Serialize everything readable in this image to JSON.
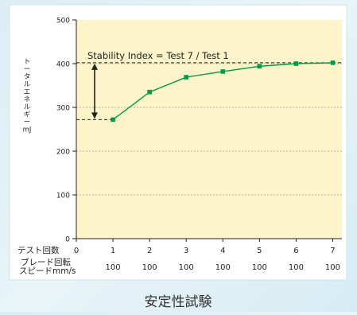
{
  "caption": "安定性試験",
  "chart_data": {
    "type": "line",
    "title": "",
    "ylabel_lines": [
      "ト",
      "ー",
      "タ",
      "ル",
      "エ",
      "ネ",
      "ル",
      "ギ",
      "ー",
      "mJ"
    ],
    "ylim": [
      0,
      500
    ],
    "yticks": [
      0,
      100,
      200,
      300,
      400,
      500
    ],
    "xlim": [
      0,
      7
    ],
    "xticks": [
      0,
      1,
      2,
      3,
      4,
      5,
      6,
      7
    ],
    "grid": true,
    "row_labels": {
      "test_count": "テスト回数",
      "blade_speed_line1": "ブレード回転",
      "blade_speed_line2": "スピードmm/s"
    },
    "blade_speeds": [
      "100",
      "100",
      "100",
      "100",
      "100",
      "100",
      "100"
    ],
    "series": [
      {
        "x": [
          1,
          2,
          3,
          4,
          5,
          6,
          7
        ],
        "y": [
          272,
          335,
          369,
          382,
          394,
          400,
          402
        ]
      }
    ],
    "annotation": "Stability Index = Test 7 / Test 1",
    "colors": {
      "plot_background": "#fdf5c9",
      "series_line": "#009944",
      "series_marker": "#009944",
      "grid": "#999999",
      "arrow": "#222222"
    }
  }
}
